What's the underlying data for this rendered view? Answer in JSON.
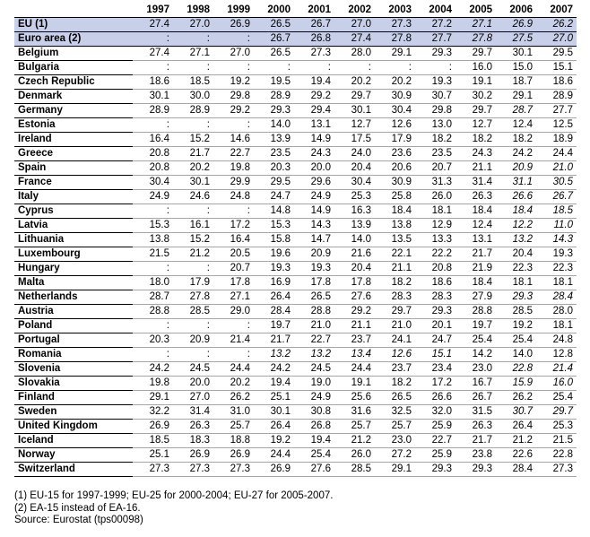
{
  "table": {
    "years": [
      "1997",
      "1998",
      "1999",
      "2000",
      "2001",
      "2002",
      "2003",
      "2004",
      "2005",
      "2006",
      "2007"
    ],
    "rows": [
      {
        "country": "EU (1)",
        "values": [
          "27.4",
          "27.0",
          "26.9",
          "26.5",
          "26.7",
          "27.0",
          "27.3",
          "27.2",
          "27.1",
          "26.9",
          "26.2"
        ],
        "italic": [
          8,
          9,
          10
        ],
        "highlight": true
      },
      {
        "country": "Euro area (2)",
        "values": [
          ":",
          ":",
          ":",
          "26.7",
          "26.8",
          "27.4",
          "27.8",
          "27.7",
          "27.8",
          "27.5",
          "27.0"
        ],
        "italic": [
          8,
          9,
          10
        ],
        "highlight": true
      },
      {
        "country": "Belgium",
        "values": [
          "27.4",
          "27.1",
          "27.0",
          "26.5",
          "27.3",
          "28.0",
          "29.1",
          "29.3",
          "29.7",
          "30.1",
          "29.5"
        ],
        "italic": []
      },
      {
        "country": "Bulgaria",
        "values": [
          ":",
          ":",
          ":",
          ":",
          ":",
          ":",
          ":",
          ":",
          "16.0",
          "15.0",
          "15.1"
        ],
        "italic": []
      },
      {
        "country": "Czech Republic",
        "values": [
          "18.6",
          "18.5",
          "19.2",
          "19.5",
          "19.4",
          "20.2",
          "20.2",
          "19.3",
          "19.1",
          "18.7",
          "18.6"
        ],
        "italic": []
      },
      {
        "country": "Denmark",
        "values": [
          "30.1",
          "30.0",
          "29.8",
          "28.9",
          "29.2",
          "29.7",
          "30.9",
          "30.7",
          "30.2",
          "29.1",
          "28.9"
        ],
        "italic": []
      },
      {
        "country": "Germany",
        "values": [
          "28.9",
          "28.9",
          "29.2",
          "29.3",
          "29.4",
          "30.1",
          "30.4",
          "29.8",
          "29.7",
          "28.7",
          "27.7"
        ],
        "italic": [
          9
        ]
      },
      {
        "country": "Estonia",
        "values": [
          ":",
          ":",
          ":",
          "14.0",
          "13.1",
          "12.7",
          "12.6",
          "13.0",
          "12.7",
          "12.4",
          "12.5"
        ],
        "italic": []
      },
      {
        "country": "Ireland",
        "values": [
          "16.4",
          "15.2",
          "14.6",
          "13.9",
          "14.9",
          "17.5",
          "17.9",
          "18.2",
          "18.2",
          "18.2",
          "18.9"
        ],
        "italic": []
      },
      {
        "country": "Greece",
        "values": [
          "20.8",
          "21.7",
          "22.7",
          "23.5",
          "24.3",
          "24.0",
          "23.6",
          "23.5",
          "24.3",
          "24.2",
          "24.4"
        ],
        "italic": []
      },
      {
        "country": "Spain",
        "values": [
          "20.8",
          "20.2",
          "19.8",
          "20.3",
          "20.0",
          "20.4",
          "20.6",
          "20.7",
          "21.1",
          "20.9",
          "21.0"
        ],
        "italic": [
          9,
          10
        ]
      },
      {
        "country": "France",
        "values": [
          "30.4",
          "30.1",
          "29.9",
          "29.5",
          "29.6",
          "30.4",
          "30.9",
          "31.3",
          "31.4",
          "31.1",
          "30.5"
        ],
        "italic": [
          9,
          10
        ]
      },
      {
        "country": "Italy",
        "values": [
          "24.9",
          "24.6",
          "24.8",
          "24.7",
          "24.9",
          "25.3",
          "25.8",
          "26.0",
          "26.3",
          "26.6",
          "26.7"
        ],
        "italic": [
          9,
          10
        ]
      },
      {
        "country": "Cyprus",
        "values": [
          ":",
          ":",
          ":",
          "14.8",
          "14.9",
          "16.3",
          "18.4",
          "18.1",
          "18.4",
          "18.4",
          "18.5"
        ],
        "italic": [
          9,
          10
        ]
      },
      {
        "country": "Latvia",
        "values": [
          "15.3",
          "16.1",
          "17.2",
          "15.3",
          "14.3",
          "13.9",
          "13.8",
          "12.9",
          "12.4",
          "12.2",
          "11.0"
        ],
        "italic": [
          9,
          10
        ]
      },
      {
        "country": "Lithuania",
        "values": [
          "13.8",
          "15.2",
          "16.4",
          "15.8",
          "14.7",
          "14.0",
          "13.5",
          "13.3",
          "13.1",
          "13.2",
          "14.3"
        ],
        "italic": [
          9,
          10
        ]
      },
      {
        "country": "Luxembourg",
        "values": [
          "21.5",
          "21.2",
          "20.5",
          "19.6",
          "20.9",
          "21.6",
          "22.1",
          "22.2",
          "21.7",
          "20.4",
          "19.3"
        ],
        "italic": []
      },
      {
        "country": "Hungary",
        "values": [
          ":",
          ":",
          "20.7",
          "19.3",
          "19.3",
          "20.4",
          "21.1",
          "20.8",
          "21.9",
          "22.3",
          "22.3"
        ],
        "italic": []
      },
      {
        "country": "Malta",
        "values": [
          "18.0",
          "17.9",
          "17.8",
          "16.9",
          "17.8",
          "17.8",
          "18.2",
          "18.6",
          "18.4",
          "18.1",
          "18.1"
        ],
        "italic": []
      },
      {
        "country": "Netherlands",
        "values": [
          "28.7",
          "27.8",
          "27.1",
          "26.4",
          "26.5",
          "27.6",
          "28.3",
          "28.3",
          "27.9",
          "29.3",
          "28.4"
        ],
        "italic": [
          9,
          10
        ]
      },
      {
        "country": "Austria",
        "values": [
          "28.8",
          "28.5",
          "29.0",
          "28.4",
          "28.8",
          "29.2",
          "29.7",
          "29.3",
          "28.8",
          "28.5",
          "28.0"
        ],
        "italic": []
      },
      {
        "country": "Poland",
        "values": [
          ":",
          ":",
          ":",
          "19.7",
          "21.0",
          "21.1",
          "21.0",
          "20.1",
          "19.7",
          "19.2",
          "18.1"
        ],
        "italic": []
      },
      {
        "country": "Portugal",
        "values": [
          "20.3",
          "20.9",
          "21.4",
          "21.7",
          "22.7",
          "23.7",
          "24.1",
          "24.7",
          "25.4",
          "25.4",
          "24.8"
        ],
        "italic": []
      },
      {
        "country": "Romania",
        "values": [
          ":",
          ":",
          ":",
          "13.2",
          "13.2",
          "13.4",
          "12.6",
          "15.1",
          "14.2",
          "14.0",
          "12.8"
        ],
        "italic": [
          3,
          4,
          5,
          6,
          7
        ]
      },
      {
        "country": "Slovenia",
        "values": [
          "24.2",
          "24.5",
          "24.4",
          "24.2",
          "24.5",
          "24.4",
          "23.7",
          "23.4",
          "23.0",
          "22.8",
          "21.4"
        ],
        "italic": [
          9,
          10
        ]
      },
      {
        "country": "Slovakia",
        "values": [
          "19.8",
          "20.0",
          "20.2",
          "19.4",
          "19.0",
          "19.1",
          "18.2",
          "17.2",
          "16.7",
          "15.9",
          "16.0"
        ],
        "italic": [
          9,
          10
        ]
      },
      {
        "country": "Finland",
        "values": [
          "29.1",
          "27.0",
          "26.2",
          "25.1",
          "24.9",
          "25.6",
          "26.5",
          "26.6",
          "26.7",
          "26.2",
          "25.4"
        ],
        "italic": []
      },
      {
        "country": "Sweden",
        "values": [
          "32.2",
          "31.4",
          "31.0",
          "30.1",
          "30.8",
          "31.6",
          "32.5",
          "32.0",
          "31.5",
          "30.7",
          "29.7"
        ],
        "italic": [
          9,
          10
        ]
      },
      {
        "country": "United Kingdom",
        "values": [
          "26.9",
          "26.3",
          "25.7",
          "26.4",
          "26.8",
          "25.7",
          "25.7",
          "25.9",
          "26.3",
          "26.4",
          "25.3"
        ],
        "italic": []
      },
      {
        "country": "Iceland",
        "values": [
          "18.5",
          "18.3",
          "18.8",
          "19.2",
          "19.4",
          "21.2",
          "23.0",
          "22.7",
          "21.7",
          "21.2",
          "21.5"
        ],
        "italic": []
      },
      {
        "country": "Norway",
        "values": [
          "25.1",
          "26.9",
          "26.9",
          "24.4",
          "25.4",
          "26.0",
          "27.2",
          "25.9",
          "23.8",
          "22.6",
          "22.8"
        ],
        "italic": []
      },
      {
        "country": "Switzerland",
        "values": [
          "27.3",
          "27.3",
          "27.3",
          "26.9",
          "27.6",
          "28.5",
          "29.1",
          "29.3",
          "29.3",
          "28.4",
          "27.3"
        ],
        "italic": []
      }
    ]
  },
  "notes": [
    "(1) EU-15 for 1997-1999; EU-25 for 2000-2004; EU-27 for 2005-2007.",
    "(2) EA-15 instead of EA-16.",
    "Source: Eurostat (tps00098)"
  ]
}
